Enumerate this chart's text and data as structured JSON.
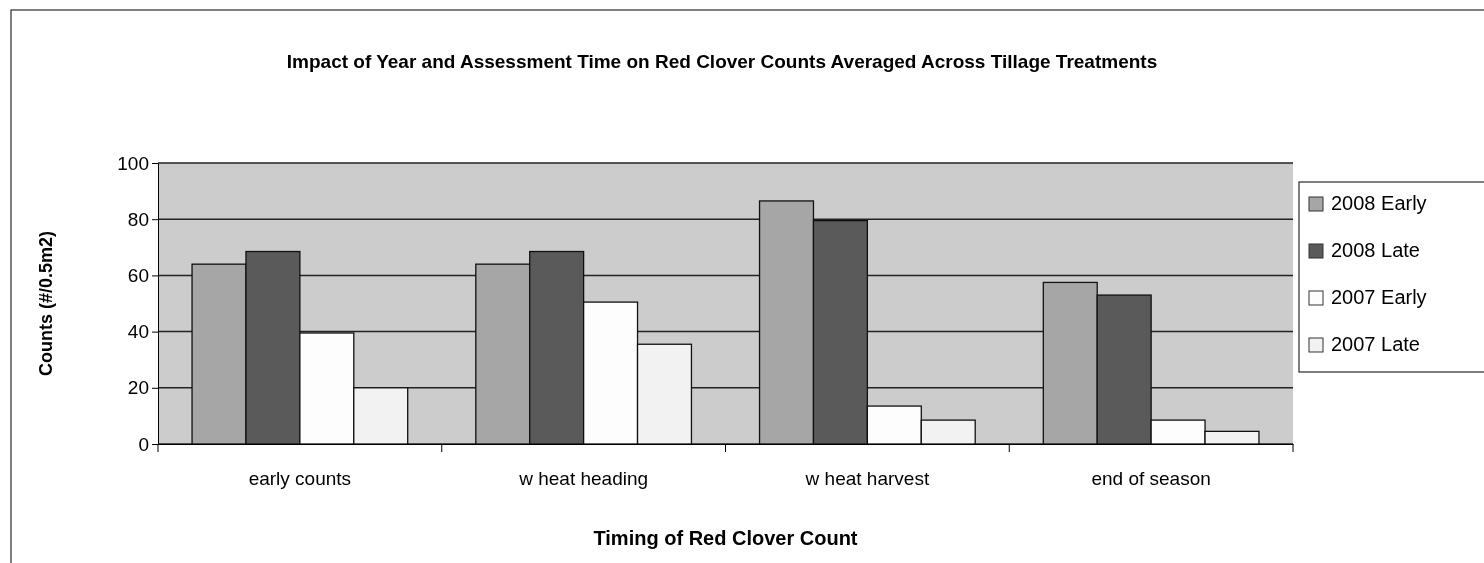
{
  "chart_data": {
    "type": "bar",
    "title": "Impact of Year and Assessment Time on Red Clover Counts Averaged Across Tillage Treatments",
    "xlabel": "Timing of Red Clover Count",
    "ylabel": "Counts (#/0.5m2)",
    "categories": [
      "early counts",
      "w heat heading",
      "w heat harvest",
      "end of season"
    ],
    "series": [
      {
        "name": "2008 Early",
        "color": "#a6a6a6",
        "values": [
          64,
          64,
          86.5,
          57.5
        ]
      },
      {
        "name": "2008 Late",
        "color": "#5a5a5a",
        "values": [
          68.5,
          68.5,
          79.5,
          53
        ]
      },
      {
        "name": "2007 Early",
        "color": "#fdfdfd",
        "values": [
          39.5,
          50.5,
          13.5,
          8.5
        ]
      },
      {
        "name": "2007 Late",
        "color": "#f2f2f2",
        "values": [
          20,
          35.5,
          8.5,
          4.5
        ]
      }
    ],
    "ylim": [
      0,
      100
    ],
    "yticks": [
      0,
      20,
      40,
      60,
      80,
      100
    ],
    "grid": "y",
    "legend": "right"
  }
}
